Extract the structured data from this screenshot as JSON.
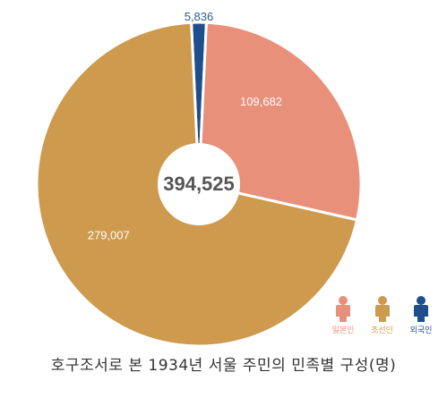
{
  "chart_data": {
    "type": "pie",
    "donut": true,
    "categories": [
      "일본인",
      "조선인",
      "외국인"
    ],
    "values": [
      109682,
      279007,
      5836
    ],
    "labels": [
      "109,682",
      "279,007",
      "5,836"
    ],
    "colors": [
      "#e8907a",
      "#cd9a4e",
      "#1e4f8c"
    ],
    "total": "394,525",
    "title": "호구조서로 본 1934년 서울 주민의 민족별 구성(명)",
    "legend_position": "bottom-right"
  },
  "legend": {
    "items": [
      {
        "label": "일본인",
        "color": "#e8907a",
        "icon": "person-icon"
      },
      {
        "label": "조선인",
        "color": "#cd9a4e",
        "icon": "person-icon"
      },
      {
        "label": "외국인",
        "color": "#1e4f8c",
        "icon": "person-icon"
      }
    ]
  }
}
